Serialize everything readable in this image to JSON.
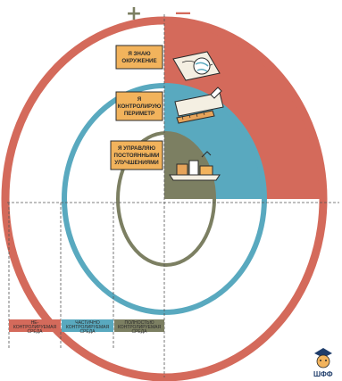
{
  "signs": {
    "plus": "+",
    "minus": "—"
  },
  "notes": [
    {
      "lines": [
        "Я ЗНАЮ",
        "ОКРУЖЕНИЕ"
      ]
    },
    {
      "lines": [
        "Я",
        "КОНТРОЛИРУЮ",
        "ПЕРИМЕТР"
      ]
    },
    {
      "lines": [
        "Я УПРАВЛЯЮ",
        "ПОСТОЯННЫМИ",
        "УЛУЧШЕНИЯМИ"
      ]
    }
  ],
  "bars": [
    {
      "lines": [
        "НЕ-",
        "КОНТРОЛИРУЕМАЯ",
        "СРЕДА"
      ],
      "color": "#d46a5b"
    },
    {
      "lines": [
        "ЧАСТИЧНО",
        "КОНТРОЛИРУЕМАЯ",
        "СРЕДА"
      ],
      "color": "#59a9bf"
    },
    {
      "lines": [
        "ПОЛНОСТЬЮ",
        "КОНТРОЛИРУЕМАЯ",
        "СРЕДА"
      ],
      "color": "#7c7f62"
    }
  ],
  "logo": {
    "text": "ШФФ"
  },
  "colors": {
    "red": "#d46a5b",
    "blue": "#59a9bf",
    "olive": "#7c7f62",
    "note": "#f2b35c",
    "dash": "#555555"
  }
}
